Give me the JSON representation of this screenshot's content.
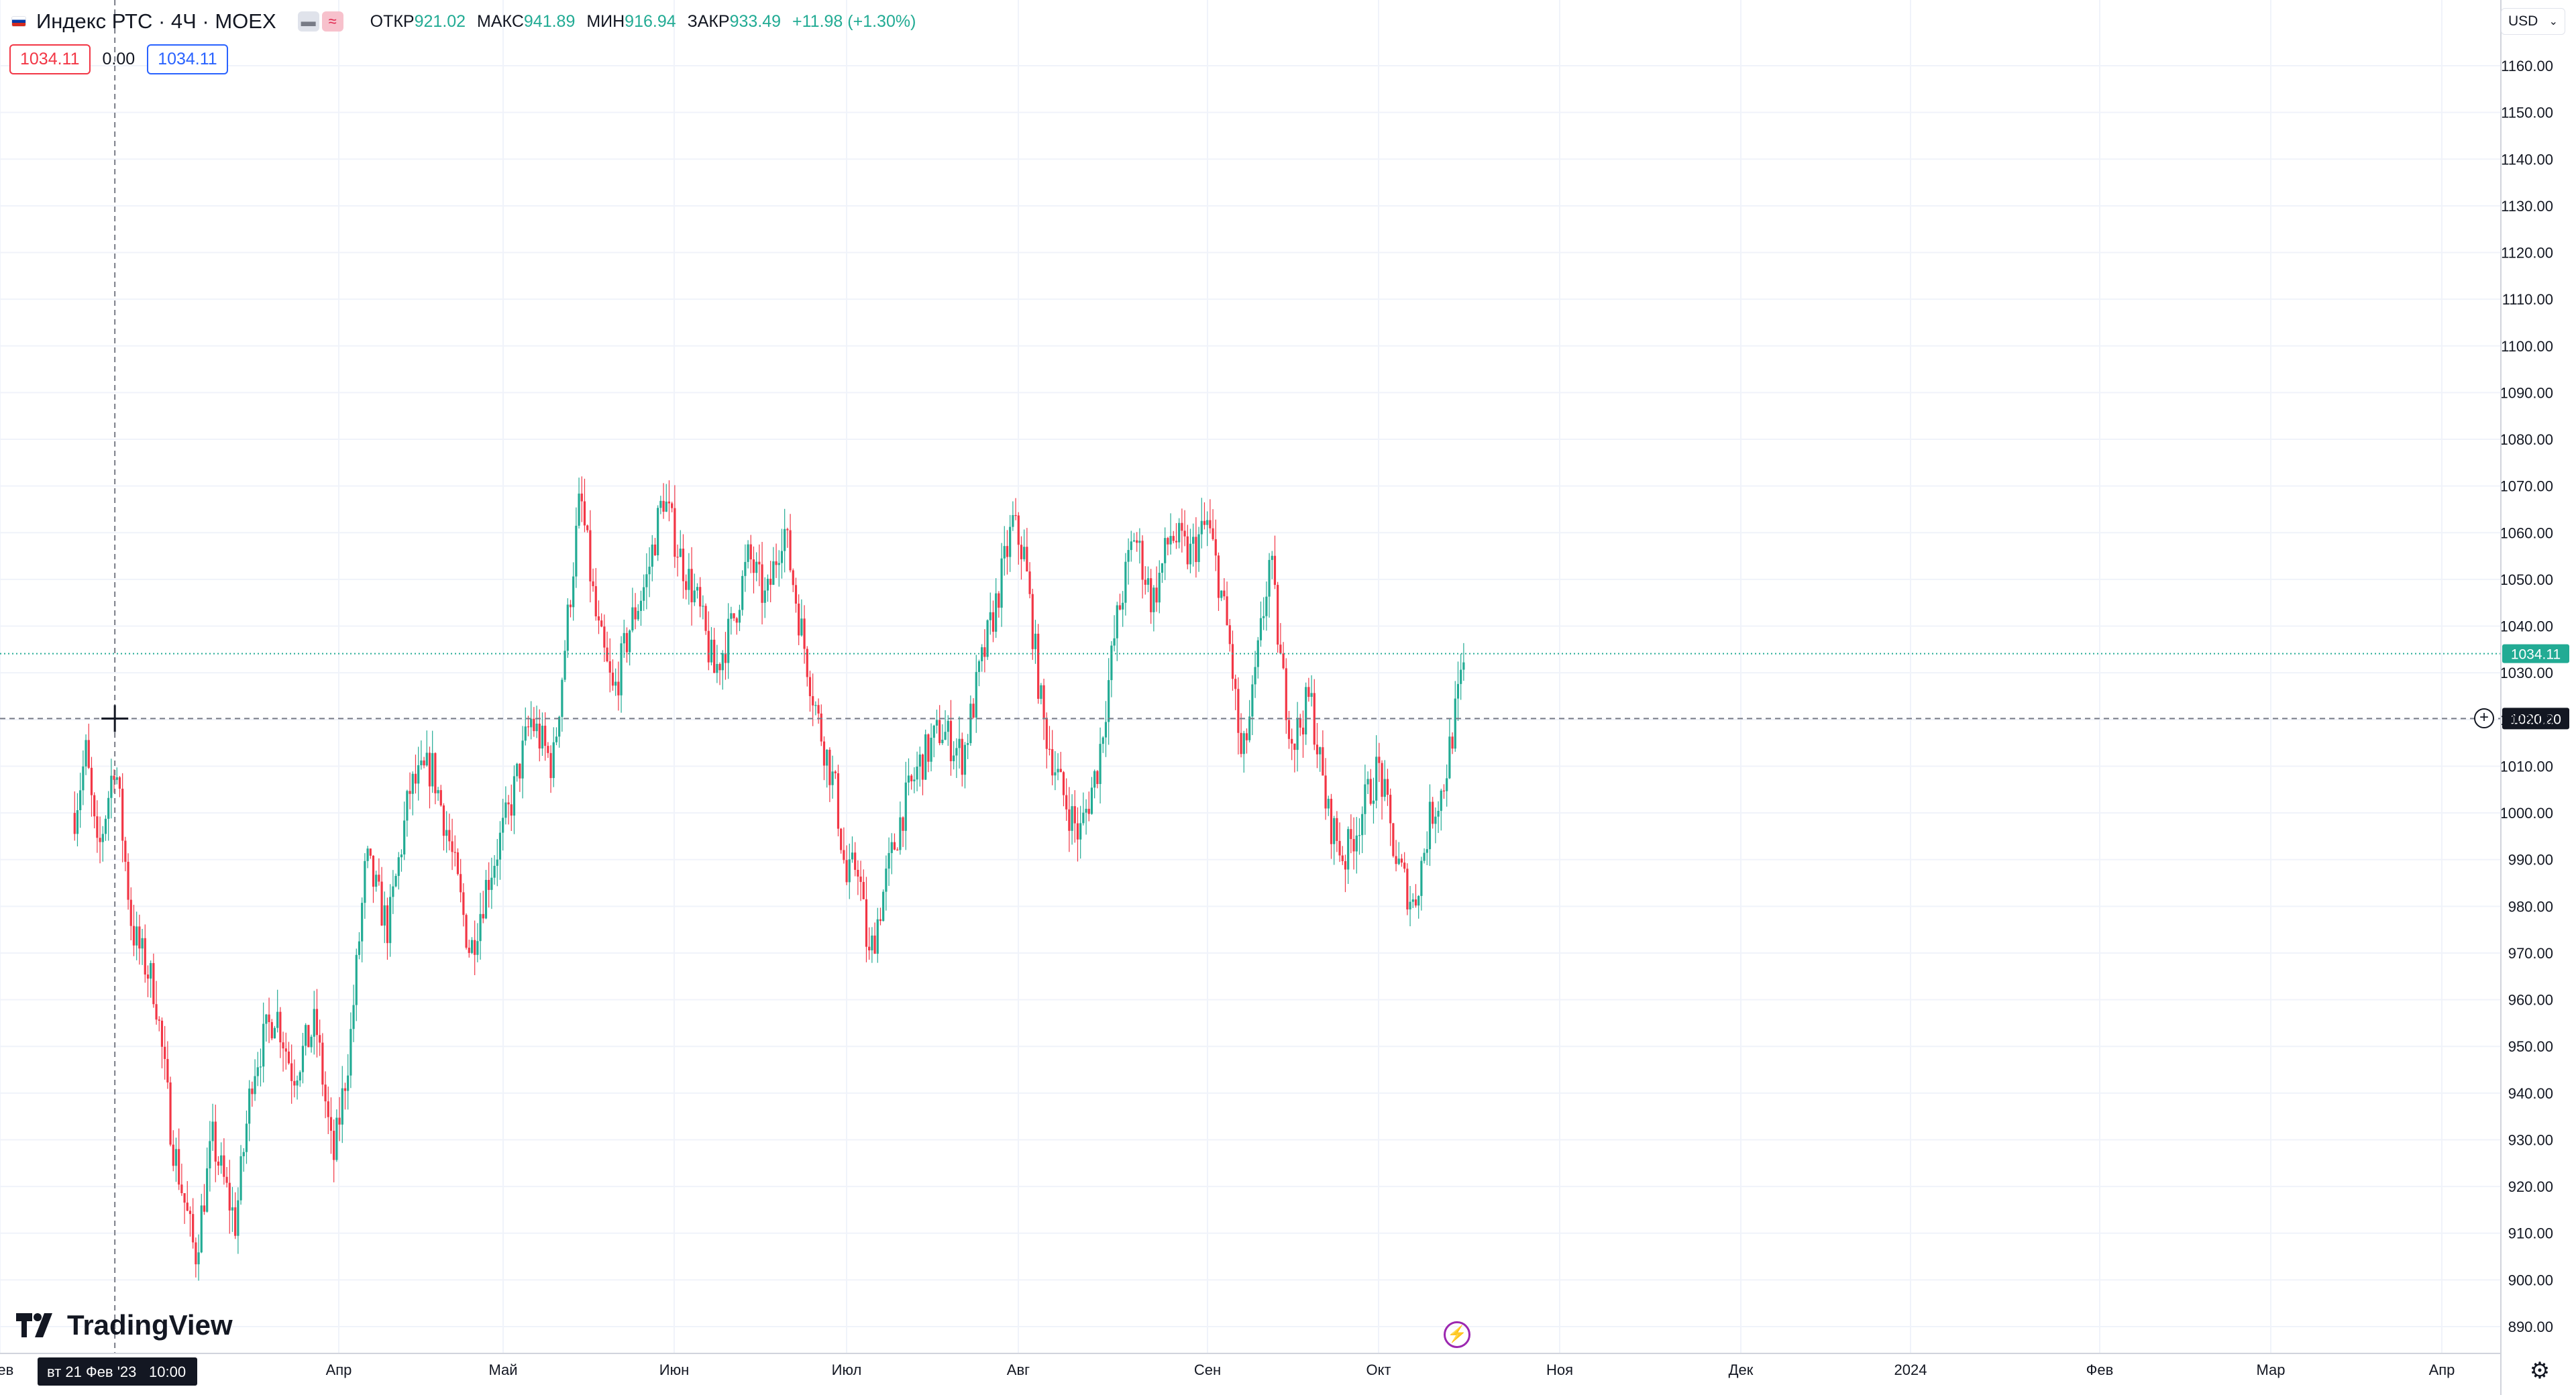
{
  "header": {
    "title": "Индекс РТС · 4Ч · MOEX",
    "ohlc": [
      {
        "key": "ОТКР",
        "value": "921.02"
      },
      {
        "key": "МАКС",
        "value": "941.89"
      },
      {
        "key": "МИН",
        "value": "916.94"
      },
      {
        "key": "ЗАКР",
        "value": "933.49"
      }
    ],
    "change": "+11.98 (+1.30%)",
    "compare_left": "1034.11",
    "compare_mid": "0.00",
    "compare_right": "1034.11",
    "currency": "USD",
    "brand": "TradingView"
  },
  "crosshair": {
    "price_label": "1020.20",
    "date_label": "вт 21 Фев '23",
    "time_label": "10:00"
  },
  "colors": {
    "up": "#22ab94",
    "down": "#f23645",
    "grid": "#f0f3fa",
    "last_price": "#22ab94"
  },
  "chart_data": {
    "type": "candlestick",
    "y_ticks": [
      890,
      900,
      910,
      920,
      930,
      940,
      950,
      960,
      970,
      980,
      990,
      1000,
      1010,
      1020,
      1030,
      1040,
      1050,
      1060,
      1070,
      1080,
      1090,
      1100,
      1110,
      1120,
      1130,
      1140,
      1150,
      1160
    ],
    "ylim": [
      885,
      1170
    ],
    "x_ticks": [
      {
        "label": "Фев",
        "x": "2023-02-01"
      },
      {
        "label": "Апр",
        "x": "2023-04-01"
      },
      {
        "label": "Май",
        "x": "2023-05-01"
      },
      {
        "label": "Июн",
        "x": "2023-06-01"
      },
      {
        "label": "Июл",
        "x": "2023-07-01"
      },
      {
        "label": "Авг",
        "x": "2023-08-01"
      },
      {
        "label": "Сен",
        "x": "2023-09-01"
      },
      {
        "label": "Окт",
        "x": "2023-10-01"
      },
      {
        "label": "Ноя",
        "x": "2023-11-01"
      },
      {
        "label": "Дек",
        "x": "2023-12-01"
      },
      {
        "label": "2024",
        "x": "2024-01-01"
      },
      {
        "label": "Фев",
        "x": "2024-02-01"
      },
      {
        "label": "Мар",
        "x": "2024-03-01"
      },
      {
        "label": "Апр",
        "x": "2024-04-01"
      }
    ],
    "last_price": "1034.11",
    "path": [
      [
        "2023-02-14",
        1000
      ],
      [
        "2023-02-16",
        1013
      ],
      [
        "2023-02-18",
        990
      ],
      [
        "2023-02-21",
        1012
      ],
      [
        "2023-02-24",
        975
      ],
      [
        "2023-02-28",
        962
      ],
      [
        "2023-03-03",
        930
      ],
      [
        "2023-03-07",
        905
      ],
      [
        "2023-03-10",
        930
      ],
      [
        "2023-03-14",
        912
      ],
      [
        "2023-03-17",
        945
      ],
      [
        "2023-03-21",
        958
      ],
      [
        "2023-03-24",
        944
      ],
      [
        "2023-03-28",
        955
      ],
      [
        "2023-03-31",
        925
      ],
      [
        "2023-04-03",
        950
      ],
      [
        "2023-04-06",
        990
      ],
      [
        "2023-04-10",
        975
      ],
      [
        "2023-04-14",
        1005
      ],
      [
        "2023-04-18",
        1010
      ],
      [
        "2023-04-21",
        995
      ],
      [
        "2023-04-25",
        970
      ],
      [
        "2023-04-28",
        985
      ],
      [
        "2023-05-02",
        1000
      ],
      [
        "2023-05-06",
        1020
      ],
      [
        "2023-05-10",
        1010
      ],
      [
        "2023-05-13",
        1045
      ],
      [
        "2023-05-15",
        1068
      ],
      [
        "2023-05-18",
        1040
      ],
      [
        "2023-05-21",
        1025
      ],
      [
        "2023-05-24",
        1040
      ],
      [
        "2023-05-27",
        1050
      ],
      [
        "2023-05-30",
        1068
      ],
      [
        "2023-06-02",
        1055
      ],
      [
        "2023-06-05",
        1045
      ],
      [
        "2023-06-08",
        1030
      ],
      [
        "2023-06-11",
        1040
      ],
      [
        "2023-06-14",
        1055
      ],
      [
        "2023-06-17",
        1045
      ],
      [
        "2023-06-20",
        1062
      ],
      [
        "2023-06-23",
        1040
      ],
      [
        "2023-06-26",
        1020
      ],
      [
        "2023-06-29",
        1005
      ],
      [
        "2023-07-01",
        985
      ],
      [
        "2023-07-03",
        990
      ],
      [
        "2023-07-05",
        968
      ],
      [
        "2023-07-08",
        985
      ],
      [
        "2023-07-11",
        1000
      ],
      [
        "2023-07-14",
        1010
      ],
      [
        "2023-07-18",
        1018
      ],
      [
        "2023-07-22",
        1012
      ],
      [
        "2023-07-25",
        1030
      ],
      [
        "2023-07-28",
        1045
      ],
      [
        "2023-07-31",
        1062
      ],
      [
        "2023-08-02",
        1055
      ],
      [
        "2023-08-05",
        1020
      ],
      [
        "2023-08-08",
        1005
      ],
      [
        "2023-08-11",
        995
      ],
      [
        "2023-08-14",
        1010
      ],
      [
        "2023-08-17",
        1040
      ],
      [
        "2023-08-20",
        1060
      ],
      [
        "2023-08-23",
        1045
      ],
      [
        "2023-08-26",
        1060
      ],
      [
        "2023-08-29",
        1055
      ],
      [
        "2023-09-01",
        1062
      ],
      [
        "2023-09-03",
        1050
      ],
      [
        "2023-09-05",
        1035
      ],
      [
        "2023-09-07",
        1010
      ],
      [
        "2023-09-09",
        1025
      ],
      [
        "2023-09-12",
        1055
      ],
      [
        "2023-09-14",
        1030
      ],
      [
        "2023-09-16",
        1015
      ],
      [
        "2023-09-19",
        1025
      ],
      [
        "2023-09-22",
        1000
      ],
      [
        "2023-09-25",
        990
      ],
      [
        "2023-09-28",
        1000
      ],
      [
        "2023-10-01",
        1010
      ],
      [
        "2023-10-04",
        990
      ],
      [
        "2023-10-07",
        980
      ],
      [
        "2023-10-10",
        1000
      ],
      [
        "2023-10-12",
        1005
      ],
      [
        "2023-10-14",
        1020
      ],
      [
        "2023-10-16",
        1034
      ]
    ]
  }
}
